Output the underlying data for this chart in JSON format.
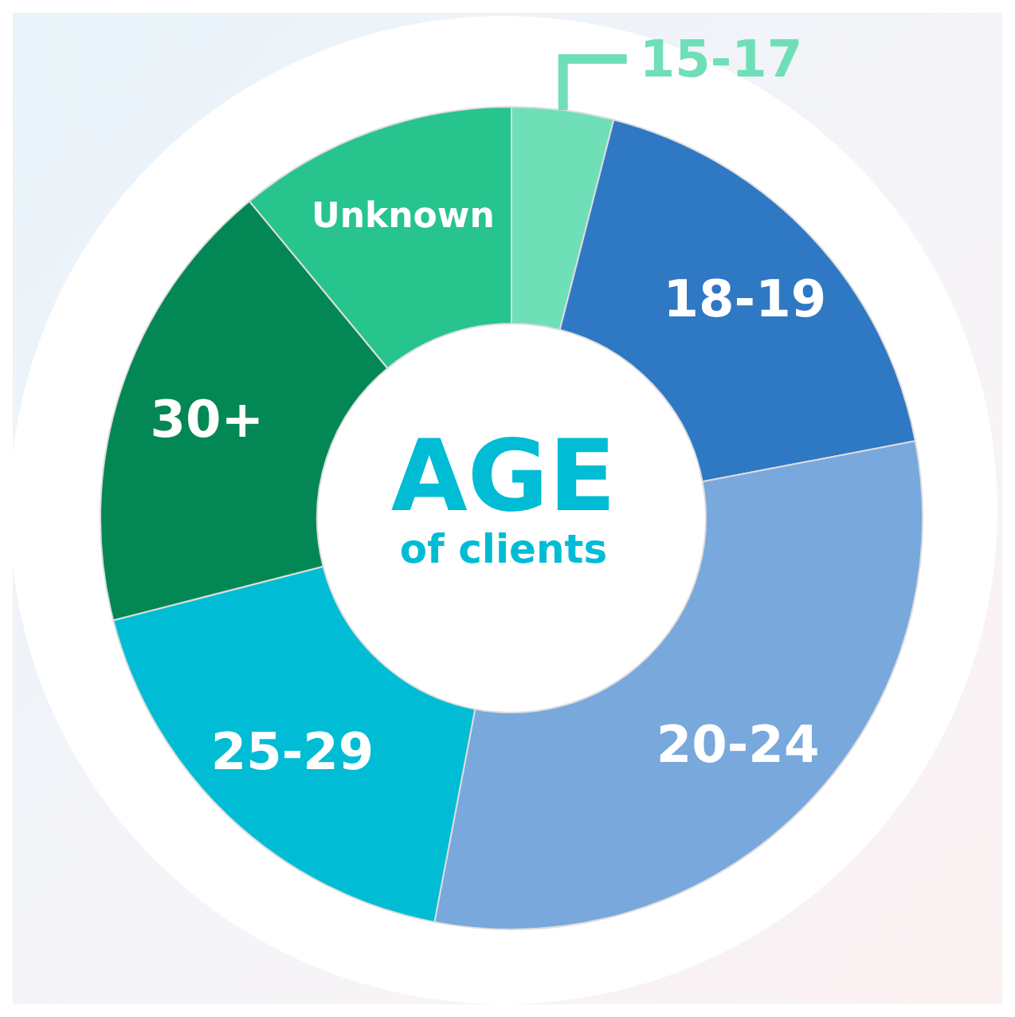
{
  "chart_data": {
    "type": "donut",
    "title": "AGE",
    "subtitle": "of clients",
    "categories": [
      "15-17",
      "18-19",
      "20-24",
      "25-29",
      "30+",
      "Unknown"
    ],
    "values": [
      4,
      18,
      31,
      18,
      18,
      11
    ],
    "colors": [
      "#6fdfb8",
      "#2f78c4",
      "#78a8dc",
      "#00bcd4",
      "#038855",
      "#27c48e"
    ],
    "legend": false
  }
}
